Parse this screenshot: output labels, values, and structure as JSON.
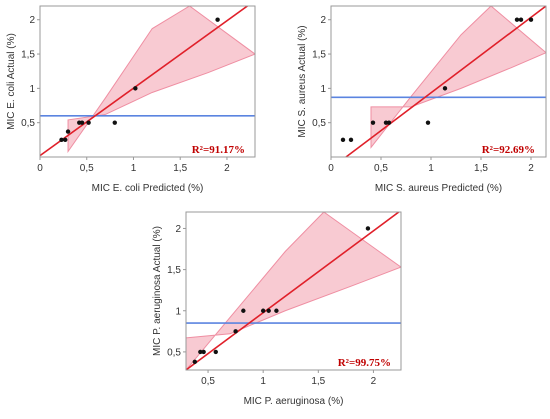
{
  "colors": {
    "fit_line": "#e0202a",
    "confidence_band_fill": "#f4a6b4",
    "confidence_band_edge": "#ef8ea2",
    "mean_line": "#5b84e0",
    "points": "#111111",
    "r2_text": "#c00000",
    "frame": "#999999"
  },
  "chart_data": [
    {
      "type": "scatter",
      "xlabel": "MIC E. coli Predicted (%)",
      "ylabel": "MIC E. coli Actual (%)",
      "xlim": [
        0,
        2.3
      ],
      "ylim": [
        0,
        2.2
      ],
      "xticks": [
        0,
        0.5,
        1,
        1.5,
        2
      ],
      "xtick_labels": [
        "0",
        "0,5",
        "1",
        "1,5",
        "2"
      ],
      "yticks": [
        0.5,
        1,
        1.5,
        2
      ],
      "ytick_labels": [
        "0,5",
        "1",
        "1,5",
        "2"
      ],
      "points": [
        [
          0.23,
          0.25
        ],
        [
          0.27,
          0.25
        ],
        [
          0.3,
          0.37
        ],
        [
          0.42,
          0.5
        ],
        [
          0.45,
          0.5
        ],
        [
          0.52,
          0.5
        ],
        [
          0.8,
          0.5
        ],
        [
          1.02,
          1.0
        ],
        [
          1.9,
          2.0
        ]
      ],
      "fit_line": [
        [
          0,
          0.02
        ],
        [
          2.3,
          2.28
        ]
      ],
      "mean_y": 0.6,
      "confidence_band": {
        "upper": [
          [
            0.3,
            0.08
          ],
          [
            0.7,
            0.86
          ],
          [
            1.2,
            1.87
          ],
          [
            1.6,
            2.2
          ]
        ],
        "lower": [
          [
            0.3,
            0.54
          ],
          [
            0.7,
            0.62
          ],
          [
            1.2,
            0.94
          ],
          [
            1.8,
            1.23
          ],
          [
            2.3,
            1.5
          ]
        ]
      },
      "r2_label": "R²=91.17%"
    },
    {
      "type": "scatter",
      "xlabel": "MIC S. aureus Predicted (%)",
      "ylabel": "MIC S. aureus Actual (%)",
      "xlim": [
        0,
        2.15
      ],
      "ylim": [
        0,
        2.2
      ],
      "xticks": [
        0,
        0.5,
        1,
        1.5,
        2
      ],
      "xtick_labels": [
        "0",
        "0,5",
        "1",
        "1,5",
        "2"
      ],
      "yticks": [
        0.5,
        1,
        1.5,
        2
      ],
      "ytick_labels": [
        "0,5",
        "1",
        "1,5",
        "2"
      ],
      "points": [
        [
          0.12,
          0.25
        ],
        [
          0.2,
          0.25
        ],
        [
          0.42,
          0.5
        ],
        [
          0.55,
          0.5
        ],
        [
          0.58,
          0.5
        ],
        [
          0.97,
          0.5
        ],
        [
          1.14,
          1.0
        ],
        [
          1.86,
          2.0
        ],
        [
          1.9,
          2.0
        ],
        [
          2.0,
          2.0
        ]
      ],
      "fit_line": [
        [
          0.15,
          0.0
        ],
        [
          2.15,
          2.2
        ]
      ],
      "mean_y": 0.87,
      "confidence_band": {
        "upper": [
          [
            0.4,
            0.14
          ],
          [
            0.8,
            0.88
          ],
          [
            1.3,
            1.78
          ],
          [
            1.6,
            2.2
          ]
        ],
        "lower": [
          [
            0.4,
            0.73
          ],
          [
            0.8,
            0.73
          ],
          [
            1.3,
            1.0
          ],
          [
            1.8,
            1.3
          ],
          [
            2.15,
            1.52
          ]
        ]
      },
      "r2_label": "R²=92.69%"
    },
    {
      "type": "scatter",
      "xlabel": "MIC P. aeruginosa (%)",
      "ylabel": "MIC P. aeruginosa Actual (%)",
      "xlim": [
        0.3,
        2.25
      ],
      "ylim": [
        0.28,
        2.2
      ],
      "xticks": [
        0.5,
        1,
        1.5,
        2
      ],
      "xtick_labels": [
        "0,5",
        "1",
        "1,5",
        "2"
      ],
      "yticks": [
        0.5,
        1,
        1.5,
        2
      ],
      "ytick_labels": [
        "0,5",
        "1",
        "1,5",
        "2"
      ],
      "points": [
        [
          0.38,
          0.38
        ],
        [
          0.43,
          0.5
        ],
        [
          0.46,
          0.5
        ],
        [
          0.57,
          0.5
        ],
        [
          0.75,
          0.75
        ],
        [
          0.82,
          1.0
        ],
        [
          1.0,
          1.0
        ],
        [
          1.05,
          1.0
        ],
        [
          1.12,
          1.0
        ],
        [
          1.95,
          2.0
        ]
      ],
      "fit_line": [
        [
          0.3,
          0.28
        ],
        [
          2.25,
          2.22
        ]
      ],
      "mean_y": 0.85,
      "confidence_band": {
        "upper": [
          [
            0.3,
            0.28
          ],
          [
            0.7,
            0.92
          ],
          [
            1.2,
            1.72
          ],
          [
            1.55,
            2.2
          ]
        ],
        "lower": [
          [
            0.3,
            0.67
          ],
          [
            0.7,
            0.72
          ],
          [
            1.2,
            1.0
          ],
          [
            1.8,
            1.3
          ],
          [
            2.25,
            1.53
          ]
        ]
      },
      "r2_label": "R²=99.75%"
    }
  ]
}
